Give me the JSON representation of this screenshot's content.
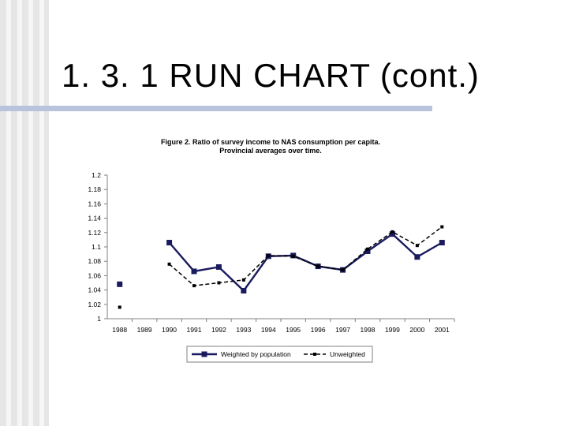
{
  "slide": {
    "title": "1. 3. 1 RUN CHART (cont.)"
  },
  "chart_data": {
    "type": "line",
    "title": "Figure 2. Ratio of survey income to NAS consumption per capita.",
    "subtitle": "Provincial averages over time.",
    "xlabel": "",
    "ylabel": "",
    "categories": [
      "1988",
      "1989",
      "1990",
      "1991",
      "1992",
      "1993",
      "1994",
      "1995",
      "1996",
      "1997",
      "1998",
      "1999",
      "2000",
      "2001"
    ],
    "ylim": [
      1,
      1.2
    ],
    "yticks": [
      "1",
      "1.02",
      "1.04",
      "1.06",
      "1.08",
      "1.1",
      "1.12",
      "1.14",
      "1.16",
      "1.18",
      "1.2"
    ],
    "grid": false,
    "legend_position": "bottom",
    "series": [
      {
        "name": "Weighted by population",
        "style": "solid-square",
        "color": "#1a1a5e",
        "values": [
          1.048,
          null,
          1.106,
          1.066,
          1.072,
          1.039,
          1.087,
          1.088,
          1.073,
          1.068,
          1.094,
          1.118,
          1.086,
          1.106
        ]
      },
      {
        "name": "Unweighted",
        "style": "dashed-small-square",
        "color": "#000000",
        "values": [
          1.016,
          null,
          1.076,
          1.046,
          1.05,
          1.054,
          1.088,
          1.087,
          1.073,
          1.068,
          1.097,
          1.121,
          1.102,
          1.128
        ]
      }
    ]
  }
}
